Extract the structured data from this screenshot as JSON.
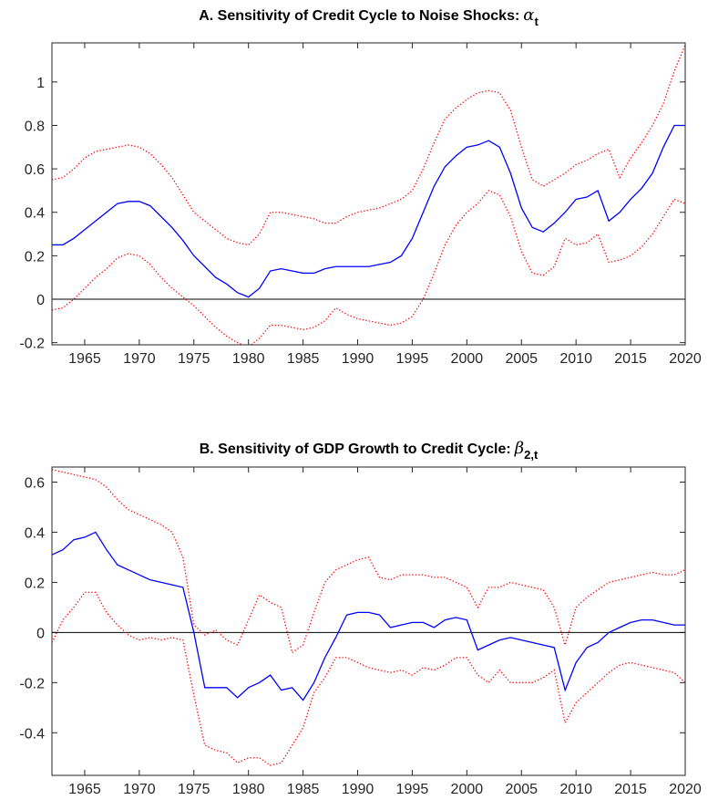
{
  "chart_data": [
    {
      "type": "line",
      "title": "A. Sensitivity of Credit Cycle to Noise Shocks:",
      "title_symbol": "α",
      "title_subscript": "t",
      "x": [
        1962,
        1963,
        1964,
        1965,
        1966,
        1967,
        1968,
        1969,
        1970,
        1971,
        1972,
        1973,
        1974,
        1975,
        1976,
        1977,
        1978,
        1979,
        1980,
        1981,
        1982,
        1983,
        1984,
        1985,
        1986,
        1987,
        1988,
        1989,
        1990,
        1991,
        1992,
        1993,
        1994,
        1995,
        1996,
        1997,
        1998,
        1999,
        2000,
        2001,
        2002,
        2003,
        2004,
        2005,
        2006,
        2007,
        2008,
        2009,
        2010,
        2011,
        2012,
        2013,
        2014,
        2015,
        2016,
        2017,
        2018,
        2019,
        2020
      ],
      "xlim": [
        1962,
        2020
      ],
      "xticks": [
        1965,
        1970,
        1975,
        1980,
        1985,
        1990,
        1995,
        2000,
        2005,
        2010,
        2015,
        2020
      ],
      "ylim": [
        -0.21,
        1.18
      ],
      "yticks": [
        -0.2,
        0,
        0.2,
        0.4,
        0.6,
        0.8,
        1
      ],
      "zero_line": true,
      "grid": false,
      "series": [
        {
          "color": "#ff0000",
          "style": "dotted",
          "values": [
            0.55,
            0.56,
            0.6,
            0.65,
            0.68,
            0.69,
            0.7,
            0.71,
            0.7,
            0.67,
            0.62,
            0.56,
            0.48,
            0.4,
            0.36,
            0.32,
            0.28,
            0.26,
            0.25,
            0.3,
            0.4,
            0.4,
            0.39,
            0.38,
            0.37,
            0.35,
            0.35,
            0.38,
            0.4,
            0.41,
            0.42,
            0.44,
            0.46,
            0.5,
            0.6,
            0.72,
            0.83,
            0.88,
            0.92,
            0.95,
            0.96,
            0.95,
            0.87,
            0.7,
            0.55,
            0.52,
            0.55,
            0.58,
            0.62,
            0.64,
            0.67,
            0.69,
            0.56,
            0.65,
            0.72,
            0.8,
            0.9,
            1.05,
            1.17
          ]
        },
        {
          "color": "#ff0000",
          "style": "dotted",
          "values": [
            -0.05,
            -0.04,
            0,
            0.05,
            0.1,
            0.14,
            0.19,
            0.21,
            0.2,
            0.16,
            0.1,
            0.05,
            0.01,
            -0.03,
            -0.08,
            -0.13,
            -0.17,
            -0.2,
            -0.22,
            -0.18,
            -0.12,
            -0.12,
            -0.13,
            -0.14,
            -0.13,
            -0.1,
            -0.04,
            -0.07,
            -0.09,
            -0.1,
            -0.11,
            -0.12,
            -0.11,
            -0.08,
            0,
            0.12,
            0.25,
            0.34,
            0.4,
            0.44,
            0.5,
            0.48,
            0.38,
            0.22,
            0.12,
            0.11,
            0.15,
            0.28,
            0.25,
            0.26,
            0.3,
            0.17,
            0.18,
            0.2,
            0.24,
            0.3,
            0.38,
            0.46,
            0.44
          ]
        },
        {
          "color": "#0000ff",
          "style": "solid",
          "values": [
            0.25,
            0.25,
            0.28,
            0.32,
            0.36,
            0.4,
            0.44,
            0.45,
            0.45,
            0.43,
            0.38,
            0.33,
            0.27,
            0.2,
            0.15,
            0.1,
            0.07,
            0.03,
            0.01,
            0.05,
            0.13,
            0.14,
            0.13,
            0.12,
            0.12,
            0.14,
            0.15,
            0.15,
            0.15,
            0.15,
            0.16,
            0.17,
            0.2,
            0.28,
            0.4,
            0.52,
            0.61,
            0.66,
            0.7,
            0.71,
            0.73,
            0.7,
            0.58,
            0.42,
            0.33,
            0.31,
            0.35,
            0.4,
            0.46,
            0.47,
            0.5,
            0.36,
            0.4,
            0.46,
            0.51,
            0.58,
            0.7,
            0.8,
            0.8
          ]
        }
      ]
    },
    {
      "type": "line",
      "title": "B. Sensitivity of GDP Growth to Credit Cycle:",
      "title_symbol": "β",
      "title_subscript": "2,t",
      "x": [
        1962,
        1963,
        1964,
        1965,
        1966,
        1967,
        1968,
        1969,
        1970,
        1971,
        1972,
        1973,
        1974,
        1975,
        1976,
        1977,
        1978,
        1979,
        1980,
        1981,
        1982,
        1983,
        1984,
        1985,
        1986,
        1987,
        1988,
        1989,
        1990,
        1991,
        1992,
        1993,
        1994,
        1995,
        1996,
        1997,
        1998,
        1999,
        2000,
        2001,
        2002,
        2003,
        2004,
        2005,
        2006,
        2007,
        2008,
        2009,
        2010,
        2011,
        2012,
        2013,
        2014,
        2015,
        2016,
        2017,
        2018,
        2019,
        2020
      ],
      "xlim": [
        1962,
        2020
      ],
      "xticks": [
        1965,
        1970,
        1975,
        1980,
        1985,
        1990,
        1995,
        2000,
        2005,
        2010,
        2015,
        2020
      ],
      "ylim": [
        -0.57,
        0.66
      ],
      "yticks": [
        -0.4,
        -0.2,
        0,
        0.2,
        0.4,
        0.6
      ],
      "zero_line": true,
      "grid": false,
      "series": [
        {
          "color": "#ff0000",
          "style": "dotted",
          "values": [
            0.65,
            0.64,
            0.63,
            0.62,
            0.61,
            0.58,
            0.53,
            0.49,
            0.47,
            0.45,
            0.43,
            0.4,
            0.3,
            0.03,
            -0.01,
            0.01,
            -0.03,
            -0.05,
            0.05,
            0.15,
            0.12,
            0.1,
            -0.08,
            -0.05,
            0.08,
            0.2,
            0.25,
            0.27,
            0.29,
            0.3,
            0.22,
            0.21,
            0.23,
            0.23,
            0.23,
            0.22,
            0.22,
            0.2,
            0.18,
            0.1,
            0.18,
            0.18,
            0.2,
            0.19,
            0.18,
            0.17,
            0.1,
            -0.05,
            0.1,
            0.14,
            0.17,
            0.2,
            0.21,
            0.22,
            0.23,
            0.24,
            0.23,
            0.23,
            0.25
          ]
        },
        {
          "color": "#ff0000",
          "style": "dotted",
          "values": [
            -0.04,
            0.05,
            0.1,
            0.16,
            0.16,
            0.08,
            0.03,
            -0.01,
            -0.03,
            -0.02,
            -0.03,
            -0.02,
            -0.03,
            -0.25,
            -0.45,
            -0.47,
            -0.48,
            -0.52,
            -0.5,
            -0.5,
            -0.53,
            -0.52,
            -0.45,
            -0.38,
            -0.24,
            -0.18,
            -0.1,
            -0.1,
            -0.12,
            -0.14,
            -0.15,
            -0.16,
            -0.15,
            -0.17,
            -0.14,
            -0.15,
            -0.13,
            -0.1,
            -0.1,
            -0.17,
            -0.2,
            -0.15,
            -0.2,
            -0.2,
            -0.2,
            -0.18,
            -0.15,
            -0.36,
            -0.28,
            -0.24,
            -0.2,
            -0.16,
            -0.13,
            -0.12,
            -0.13,
            -0.14,
            -0.15,
            -0.16,
            -0.2
          ]
        },
        {
          "color": "#0000ff",
          "style": "solid",
          "values": [
            0.31,
            0.33,
            0.37,
            0.38,
            0.4,
            0.33,
            0.27,
            0.25,
            0.23,
            0.21,
            0.2,
            0.19,
            0.18,
            0,
            -0.22,
            -0.22,
            -0.22,
            -0.26,
            -0.22,
            -0.2,
            -0.17,
            -0.23,
            -0.22,
            -0.27,
            -0.2,
            -0.1,
            -0.02,
            0.07,
            0.08,
            0.08,
            0.07,
            0.02,
            0.03,
            0.04,
            0.04,
            0.02,
            0.05,
            0.06,
            0.05,
            -0.07,
            -0.05,
            -0.03,
            -0.02,
            -0.03,
            -0.04,
            -0.05,
            -0.06,
            -0.23,
            -0.12,
            -0.06,
            -0.04,
            0,
            0.02,
            0.04,
            0.05,
            0.05,
            0.04,
            0.03,
            0.03
          ]
        }
      ]
    }
  ]
}
